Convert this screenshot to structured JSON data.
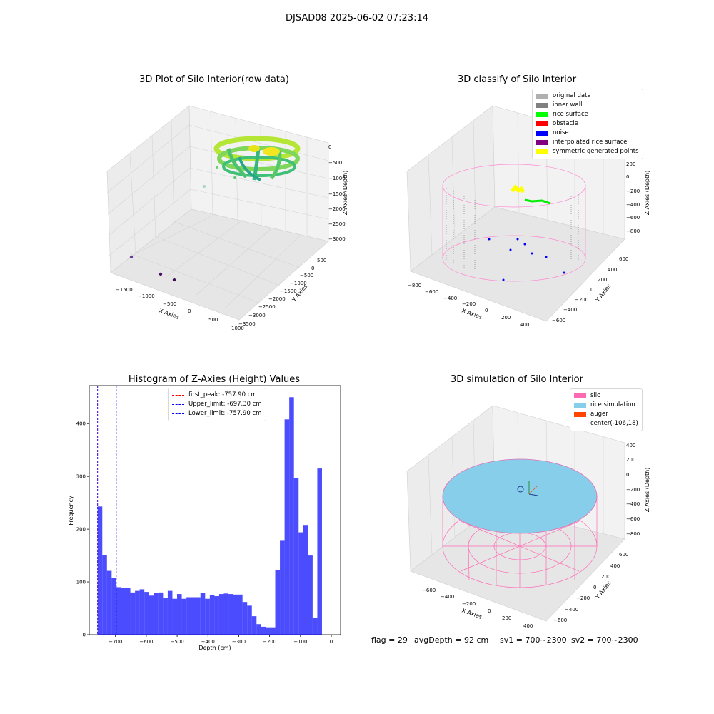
{
  "suptitle": "DJSAD08 2025-06-02 07:23:14",
  "panels": {
    "raw": {
      "title": "3D Plot of Silo Interior(row data)",
      "xlabel": "X Axies",
      "ylabel": "Y Axies",
      "zlabel": "Z Axies (Depth)",
      "xticks": [
        "−1500",
        "−1000",
        "−500",
        "0",
        "500",
        "1000"
      ],
      "yticks": [
        "500",
        "0",
        "−500",
        "−1000",
        "−1500",
        "−2000",
        "−2500",
        "−3000",
        "−3500"
      ],
      "zticks": [
        "0",
        "−500",
        "−1000",
        "−1500",
        "−2000",
        "−2500",
        "−3000"
      ]
    },
    "classify": {
      "title": "3D classify of Silo Interior",
      "xlabel": "X Axies",
      "ylabel": "Y Axies",
      "zlabel": "Z Axies (Depth)",
      "xticks": [
        "−800",
        "−600",
        "−400",
        "−200",
        "0",
        "200",
        "400"
      ],
      "yticks": [
        "600",
        "400",
        "200",
        "0",
        "−200",
        "−400",
        "−600"
      ],
      "zticks": [
        "200",
        "0",
        "−200",
        "−400",
        "−600",
        "−800"
      ],
      "ztick_top_partial": "00",
      "legend": [
        {
          "label": "original data",
          "color": "#b0b0b0"
        },
        {
          "label": "inner wall",
          "color": "#808080"
        },
        {
          "label": "rice surface",
          "color": "#00ff00"
        },
        {
          "label": "obstacle",
          "color": "#ff0000"
        },
        {
          "label": "noise",
          "color": "#0000ff"
        },
        {
          "label": "interpolated rice surface",
          "color": "#800080"
        },
        {
          "label": "symmetric generated points",
          "color": "#ffff00"
        }
      ]
    },
    "simulation": {
      "title": "3D simulation of Silo Interior",
      "xlabel": "X Axies",
      "ylabel": "Y Axies",
      "zlabel": "Z Axies (Depth)",
      "xticks": [
        "−600",
        "−400",
        "−200",
        "0",
        "200",
        "400"
      ],
      "yticks": [
        "600",
        "400",
        "200",
        "0",
        "−200",
        "−400",
        "−600"
      ],
      "zticks": [
        "400",
        "200",
        "0",
        "−200",
        "−400",
        "−600",
        "−800"
      ],
      "legend": [
        {
          "label": "silo",
          "color": "#ff69b4"
        },
        {
          "label": "rice simulation",
          "color": "#87ceeb"
        },
        {
          "label": "auger",
          "color": "#ff4500"
        },
        {
          "label": "center(-106,18)",
          "color": ""
        }
      ]
    }
  },
  "footer": {
    "flag": "flag = 29",
    "avg": "avgDepth = 92 cm",
    "sv1": "sv1 = 700~2300",
    "sv2": "sv2 = 700~2300"
  },
  "chart_data": {
    "type": "bar",
    "title": "Histogram of Z-Axies (Height) Values",
    "xlabel": "Depth (cm)",
    "ylabel": "Frequency",
    "xlim": [
      -785,
      30
    ],
    "ylim": [
      0,
      472
    ],
    "xticks": [
      -700,
      -600,
      -500,
      -400,
      -300,
      -200,
      -100,
      0
    ],
    "xtick_labels": [
      "−700",
      "−600",
      "−500",
      "−400",
      "−300",
      "−200",
      "−100",
      "0"
    ],
    "yticks": [
      0,
      100,
      200,
      300,
      400
    ],
    "bin_start": -757.9,
    "bin_width": 15.16,
    "bar_color": "#0000ff",
    "values": [
      243,
      151,
      121,
      108,
      90,
      89,
      88,
      80,
      83,
      86,
      81,
      74,
      79,
      80,
      70,
      83,
      68,
      77,
      68,
      71,
      71,
      71,
      79,
      68,
      75,
      73,
      77,
      78,
      77,
      76,
      76,
      62,
      55,
      35,
      20,
      15,
      14,
      14,
      123,
      178,
      408,
      450,
      297,
      194,
      208,
      150,
      32,
      315
    ],
    "vlines": [
      {
        "label": "first_peak: -757.90 cm",
        "x": -757.9,
        "color": "#ff0000"
      },
      {
        "label": "Upper_limit: -697.30 cm",
        "x": -697.3,
        "color": "#0000ff"
      },
      {
        "label": "Lower_limit: -757.90 cm",
        "x": -757.9,
        "color": "#0000ff"
      }
    ]
  }
}
